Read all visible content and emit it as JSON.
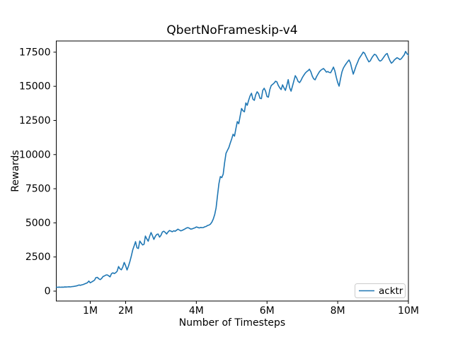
{
  "chart_data": {
    "type": "line",
    "title": "QbertNoFrameskip-v4",
    "xlabel": "Number of Timesteps",
    "ylabel": "Rewards",
    "x_unit": "millions_of_timesteps",
    "xlim": [
      0.038,
      10.0
    ],
    "ylim": [
      -725,
      18320
    ],
    "grid": false,
    "background": "#ffffff",
    "x_ticks": [
      {
        "value": 1,
        "label": "1M"
      },
      {
        "value": 2,
        "label": "2M"
      },
      {
        "value": 4,
        "label": "4M"
      },
      {
        "value": 6,
        "label": "6M"
      },
      {
        "value": 8,
        "label": "8M"
      },
      {
        "value": 10,
        "label": "10M"
      }
    ],
    "y_ticks": [
      {
        "value": 0,
        "label": "0"
      },
      {
        "value": 2500,
        "label": "2500"
      },
      {
        "value": 5000,
        "label": "5000"
      },
      {
        "value": 7500,
        "label": "7500"
      },
      {
        "value": 10000,
        "label": "10000"
      },
      {
        "value": 12500,
        "label": "12500"
      },
      {
        "value": 15000,
        "label": "15000"
      },
      {
        "value": 17500,
        "label": "17500"
      }
    ],
    "legend": {
      "position": "lower right",
      "entries": [
        "acktr"
      ]
    },
    "series": [
      {
        "name": "acktr",
        "color": "#1f77b4",
        "points": [
          [
            0.04,
            290
          ],
          [
            0.08,
            278
          ],
          [
            0.12,
            292
          ],
          [
            0.16,
            285
          ],
          [
            0.2,
            296
          ],
          [
            0.24,
            290
          ],
          [
            0.28,
            304
          ],
          [
            0.32,
            298
          ],
          [
            0.36,
            310
          ],
          [
            0.4,
            318
          ],
          [
            0.44,
            312
          ],
          [
            0.48,
            330
          ],
          [
            0.52,
            342
          ],
          [
            0.56,
            356
          ],
          [
            0.6,
            378
          ],
          [
            0.64,
            405
          ],
          [
            0.68,
            452
          ],
          [
            0.72,
            425
          ],
          [
            0.76,
            458
          ],
          [
            0.8,
            488
          ],
          [
            0.84,
            530
          ],
          [
            0.88,
            568
          ],
          [
            0.92,
            615
          ],
          [
            0.96,
            740
          ],
          [
            1.0,
            610
          ],
          [
            1.04,
            665
          ],
          [
            1.08,
            735
          ],
          [
            1.12,
            800
          ],
          [
            1.16,
            990
          ],
          [
            1.2,
            1010
          ],
          [
            1.24,
            905
          ],
          [
            1.28,
            845
          ],
          [
            1.32,
            925
          ],
          [
            1.36,
            1065
          ],
          [
            1.4,
            1110
          ],
          [
            1.44,
            1175
          ],
          [
            1.48,
            1190
          ],
          [
            1.52,
            1125
          ],
          [
            1.56,
            1045
          ],
          [
            1.6,
            1280
          ],
          [
            1.64,
            1340
          ],
          [
            1.68,
            1290
          ],
          [
            1.72,
            1350
          ],
          [
            1.76,
            1460
          ],
          [
            1.8,
            1800
          ],
          [
            1.84,
            1630
          ],
          [
            1.88,
            1565
          ],
          [
            1.92,
            1770
          ],
          [
            1.96,
            2100
          ],
          [
            2.0,
            1860
          ],
          [
            2.04,
            1545
          ],
          [
            2.08,
            1830
          ],
          [
            2.12,
            2170
          ],
          [
            2.16,
            2560
          ],
          [
            2.2,
            3010
          ],
          [
            2.24,
            3310
          ],
          [
            2.28,
            3620
          ],
          [
            2.32,
            3170
          ],
          [
            2.36,
            3120
          ],
          [
            2.4,
            3670
          ],
          [
            2.44,
            3520
          ],
          [
            2.48,
            3380
          ],
          [
            2.52,
            3430
          ],
          [
            2.56,
            4030
          ],
          [
            2.6,
            3830
          ],
          [
            2.64,
            3655
          ],
          [
            2.68,
            4010
          ],
          [
            2.72,
            4290
          ],
          [
            2.76,
            4055
          ],
          [
            2.8,
            3790
          ],
          [
            2.84,
            4010
          ],
          [
            2.88,
            4150
          ],
          [
            2.92,
            4180
          ],
          [
            2.96,
            3955
          ],
          [
            3.0,
            4090
          ],
          [
            3.04,
            4330
          ],
          [
            3.08,
            4390
          ],
          [
            3.12,
            4300
          ],
          [
            3.16,
            4185
          ],
          [
            3.2,
            4330
          ],
          [
            3.24,
            4440
          ],
          [
            3.28,
            4400
          ],
          [
            3.32,
            4345
          ],
          [
            3.36,
            4420
          ],
          [
            3.4,
            4385
          ],
          [
            3.44,
            4460
          ],
          [
            3.48,
            4540
          ],
          [
            3.52,
            4475
          ],
          [
            3.56,
            4415
          ],
          [
            3.6,
            4450
          ],
          [
            3.64,
            4500
          ],
          [
            3.68,
            4560
          ],
          [
            3.72,
            4620
          ],
          [
            3.76,
            4650
          ],
          [
            3.8,
            4610
          ],
          [
            3.84,
            4545
          ],
          [
            3.88,
            4560
          ],
          [
            3.92,
            4600
          ],
          [
            3.96,
            4635
          ],
          [
            4.0,
            4700
          ],
          [
            4.04,
            4670
          ],
          [
            4.08,
            4625
          ],
          [
            4.12,
            4660
          ],
          [
            4.16,
            4645
          ],
          [
            4.2,
            4655
          ],
          [
            4.24,
            4710
          ],
          [
            4.28,
            4740
          ],
          [
            4.32,
            4805
          ],
          [
            4.36,
            4840
          ],
          [
            4.4,
            4905
          ],
          [
            4.44,
            5050
          ],
          [
            4.48,
            5280
          ],
          [
            4.52,
            5600
          ],
          [
            4.56,
            6100
          ],
          [
            4.6,
            7000
          ],
          [
            4.64,
            7870
          ],
          [
            4.68,
            8390
          ],
          [
            4.72,
            8310
          ],
          [
            4.76,
            8560
          ],
          [
            4.8,
            9400
          ],
          [
            4.84,
            10090
          ],
          [
            4.88,
            10310
          ],
          [
            4.92,
            10510
          ],
          [
            4.96,
            10840
          ],
          [
            5.0,
            11140
          ],
          [
            5.04,
            11490
          ],
          [
            5.08,
            11350
          ],
          [
            5.12,
            11910
          ],
          [
            5.16,
            12420
          ],
          [
            5.2,
            12260
          ],
          [
            5.24,
            12830
          ],
          [
            5.28,
            13380
          ],
          [
            5.32,
            13210
          ],
          [
            5.36,
            13130
          ],
          [
            5.4,
            13780
          ],
          [
            5.44,
            13610
          ],
          [
            5.48,
            13980
          ],
          [
            5.52,
            14300
          ],
          [
            5.56,
            14490
          ],
          [
            5.6,
            14060
          ],
          [
            5.64,
            13975
          ],
          [
            5.68,
            14380
          ],
          [
            5.72,
            14600
          ],
          [
            5.76,
            14465
          ],
          [
            5.8,
            14125
          ],
          [
            5.84,
            14095
          ],
          [
            5.88,
            14700
          ],
          [
            5.92,
            14860
          ],
          [
            5.96,
            14645
          ],
          [
            6.0,
            14250
          ],
          [
            6.04,
            14205
          ],
          [
            6.08,
            14760
          ],
          [
            6.12,
            15060
          ],
          [
            6.16,
            15140
          ],
          [
            6.2,
            15230
          ],
          [
            6.24,
            15370
          ],
          [
            6.28,
            15325
          ],
          [
            6.32,
            15065
          ],
          [
            6.36,
            14895
          ],
          [
            6.4,
            14760
          ],
          [
            6.44,
            15105
          ],
          [
            6.48,
            14885
          ],
          [
            6.52,
            14705
          ],
          [
            6.56,
            15060
          ],
          [
            6.6,
            15490
          ],
          [
            6.64,
            14895
          ],
          [
            6.68,
            14645
          ],
          [
            6.72,
            15015
          ],
          [
            6.76,
            15400
          ],
          [
            6.8,
            15780
          ],
          [
            6.84,
            15605
          ],
          [
            6.88,
            15355
          ],
          [
            6.92,
            15270
          ],
          [
            6.96,
            15425
          ],
          [
            7.0,
            15645
          ],
          [
            7.04,
            15810
          ],
          [
            7.08,
            15960
          ],
          [
            7.12,
            16070
          ],
          [
            7.16,
            16145
          ],
          [
            7.2,
            16250
          ],
          [
            7.24,
            16065
          ],
          [
            7.28,
            15745
          ],
          [
            7.32,
            15545
          ],
          [
            7.36,
            15480
          ],
          [
            7.4,
            15705
          ],
          [
            7.44,
            15890
          ],
          [
            7.48,
            16060
          ],
          [
            7.52,
            16170
          ],
          [
            7.56,
            16245
          ],
          [
            7.6,
            16300
          ],
          [
            7.64,
            16185
          ],
          [
            7.68,
            16045
          ],
          [
            7.72,
            16085
          ],
          [
            7.76,
            16015
          ],
          [
            7.8,
            15995
          ],
          [
            7.84,
            16195
          ],
          [
            7.88,
            16405
          ],
          [
            7.92,
            16125
          ],
          [
            7.96,
            15665
          ],
          [
            8.0,
            15275
          ],
          [
            8.04,
            15015
          ],
          [
            8.08,
            15560
          ],
          [
            8.12,
            16050
          ],
          [
            8.16,
            16335
          ],
          [
            8.2,
            16510
          ],
          [
            8.24,
            16665
          ],
          [
            8.28,
            16805
          ],
          [
            8.32,
            16930
          ],
          [
            8.36,
            16715
          ],
          [
            8.4,
            16285
          ],
          [
            8.44,
            15895
          ],
          [
            8.48,
            16190
          ],
          [
            8.52,
            16505
          ],
          [
            8.56,
            16745
          ],
          [
            8.6,
            17005
          ],
          [
            8.64,
            17170
          ],
          [
            8.68,
            17325
          ],
          [
            8.72,
            17500
          ],
          [
            8.76,
            17425
          ],
          [
            8.8,
            17195
          ],
          [
            8.84,
            16985
          ],
          [
            8.88,
            16795
          ],
          [
            8.92,
            16865
          ],
          [
            8.96,
            17065
          ],
          [
            9.0,
            17225
          ],
          [
            9.04,
            17345
          ],
          [
            9.08,
            17295
          ],
          [
            9.12,
            17125
          ],
          [
            9.16,
            16935
          ],
          [
            9.2,
            16845
          ],
          [
            9.24,
            16905
          ],
          [
            9.28,
            17045
          ],
          [
            9.32,
            17195
          ],
          [
            9.36,
            17335
          ],
          [
            9.4,
            17405
          ],
          [
            9.44,
            17115
          ],
          [
            9.48,
            16865
          ],
          [
            9.52,
            16695
          ],
          [
            9.56,
            16785
          ],
          [
            9.6,
            16925
          ],
          [
            9.64,
            17015
          ],
          [
            9.68,
            17095
          ],
          [
            9.72,
            17035
          ],
          [
            9.76,
            16955
          ],
          [
            9.8,
            17025
          ],
          [
            9.84,
            17165
          ],
          [
            9.88,
            17295
          ],
          [
            9.92,
            17555
          ],
          [
            9.96,
            17385
          ],
          [
            10.0,
            17305
          ]
        ]
      }
    ]
  },
  "colors": {
    "line": "#1f77b4",
    "spine": "#000000",
    "tick": "#000000",
    "legend_border": "#cccccc",
    "background": "#ffffff"
  }
}
